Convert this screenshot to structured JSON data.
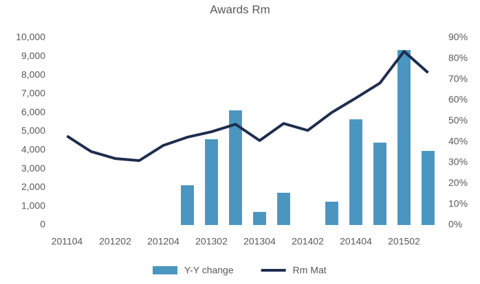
{
  "chart_data": {
    "type": "bar-line",
    "title": "Awards Rm",
    "categories": [
      "201104",
      null,
      "201202",
      null,
      "201204",
      null,
      "201302",
      null,
      "201304",
      null,
      "201402",
      null,
      "201404",
      null,
      "201502",
      null
    ],
    "series": [
      {
        "name": "Y-Y change",
        "type": "bar",
        "axis": "y2",
        "color": "#4a96c0",
        "values": [
          null,
          null,
          null,
          null,
          null,
          19.1,
          41.2,
          55.1,
          6.3,
          15.5,
          null,
          11.2,
          50.8,
          39.6,
          84.1,
          35.6
        ]
      },
      {
        "name": "Rm Mat",
        "type": "line",
        "axis": "y",
        "color": "#1f2d4e",
        "values": [
          4750,
          3920,
          3550,
          3440,
          4250,
          4690,
          4980,
          5380,
          4510,
          5420,
          5050,
          6010,
          6780,
          7580,
          9270,
          8130
        ]
      }
    ],
    "ylim": [
      0,
      10000
    ],
    "yticks": [
      0,
      {
        "value": 1000,
        "label": "1,000"
      },
      {
        "value": 2000,
        "label": "2,000"
      },
      {
        "value": 3000,
        "label": "3,000"
      },
      {
        "value": 4000,
        "label": "4,000"
      },
      {
        "value": 5000,
        "label": "5,000"
      },
      {
        "value": 6000,
        "label": "6,000"
      },
      {
        "value": 7000,
        "label": "7,000"
      },
      {
        "value": 8000,
        "label": "8,000"
      },
      {
        "value": 9000,
        "label": "9,000"
      },
      {
        "value": 10000,
        "label": "10,000"
      }
    ],
    "y2lim": [
      0,
      90
    ],
    "y2ticks": [
      {
        "value": 0,
        "label": "0%"
      },
      {
        "value": 10,
        "label": "10%"
      },
      {
        "value": 20,
        "label": "20%"
      },
      {
        "value": 30,
        "label": "30%"
      },
      {
        "value": 40,
        "label": "40%"
      },
      {
        "value": 50,
        "label": "50%"
      },
      {
        "value": 60,
        "label": "60%"
      },
      {
        "value": 70,
        "label": "70%"
      },
      {
        "value": 80,
        "label": "80%"
      },
      {
        "value": 90,
        "label": "90%"
      }
    ],
    "legend": "bottom"
  }
}
